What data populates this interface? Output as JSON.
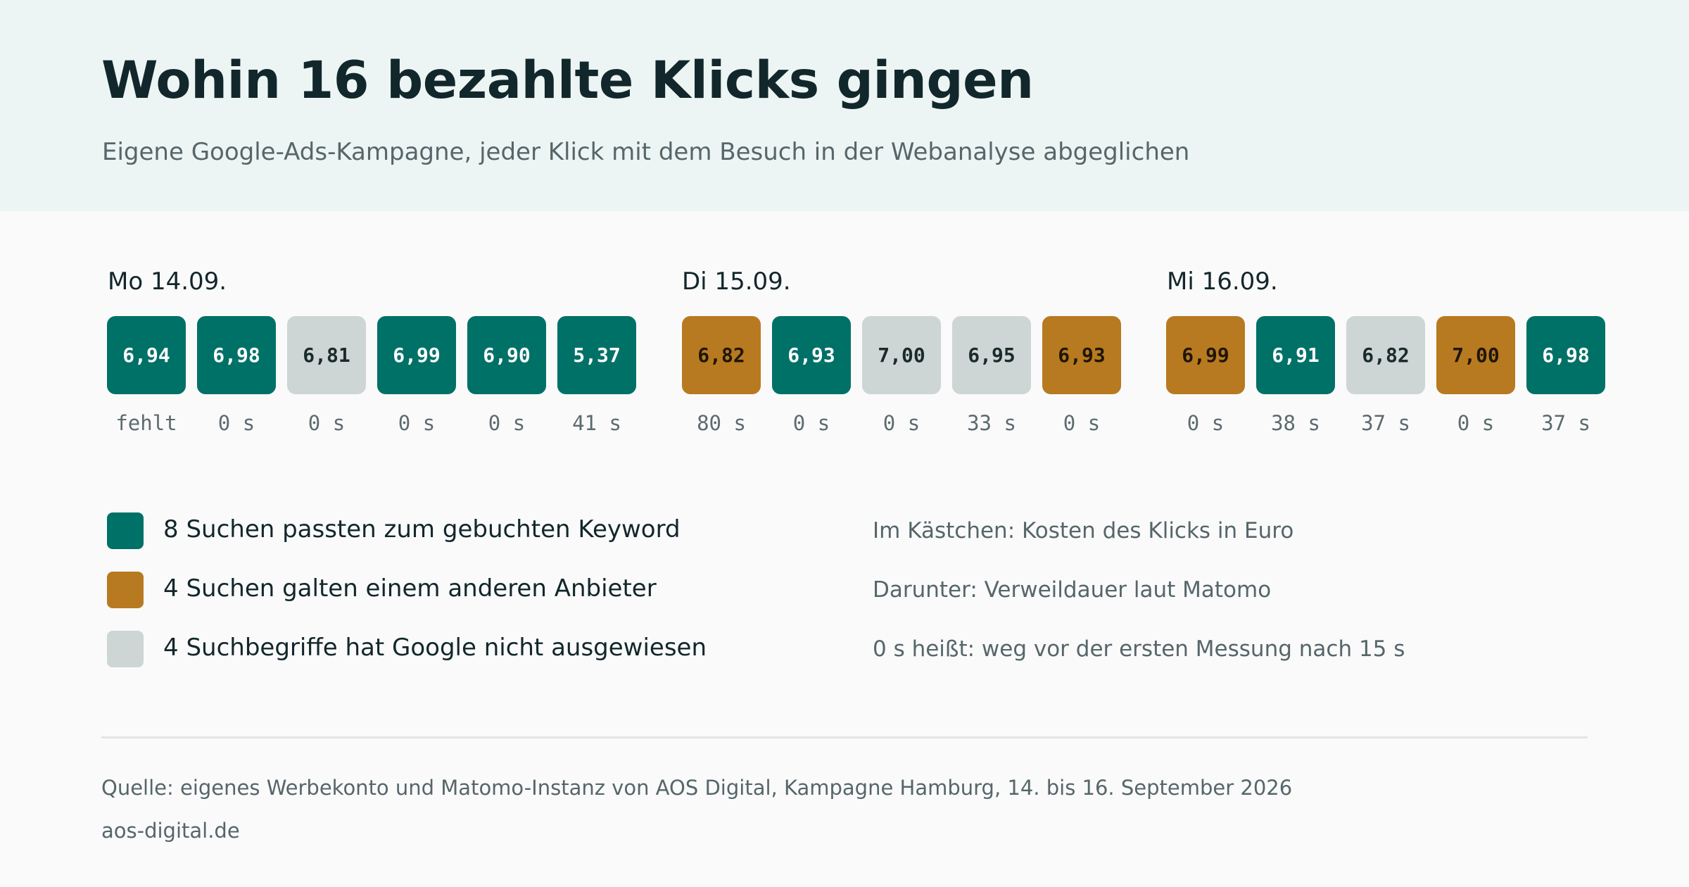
{
  "header": {
    "title": "Wohin 16 bezahlte Klicks gingen",
    "subtitle": "Eigene Google-Ads-Kampagne, jeder Klick mit dem Besuch in der Webanalyse abgeglichen"
  },
  "colors": {
    "keyword": "#007167",
    "other": "#b87a20",
    "unknown": "#cdd6d4",
    "header_bg": "#ecf5f3"
  },
  "chart_data": {
    "type": "table",
    "days": [
      {
        "label": "Mo 14.09.",
        "clicks": [
          {
            "cost": "6,94",
            "category": "keyword",
            "duration": "fehlt"
          },
          {
            "cost": "6,98",
            "category": "keyword",
            "duration": "0 s"
          },
          {
            "cost": "6,81",
            "category": "unknown",
            "duration": "0 s"
          },
          {
            "cost": "6,99",
            "category": "keyword",
            "duration": "0 s"
          },
          {
            "cost": "6,90",
            "category": "keyword",
            "duration": "0 s"
          },
          {
            "cost": "5,37",
            "category": "keyword",
            "duration": "41 s"
          }
        ]
      },
      {
        "label": "Di 15.09.",
        "clicks": [
          {
            "cost": "6,82",
            "category": "other",
            "duration": "80 s"
          },
          {
            "cost": "6,93",
            "category": "keyword",
            "duration": "0 s"
          },
          {
            "cost": "7,00",
            "category": "unknown",
            "duration": "0 s"
          },
          {
            "cost": "6,95",
            "category": "unknown",
            "duration": "33 s"
          },
          {
            "cost": "6,93",
            "category": "other",
            "duration": "0 s"
          }
        ]
      },
      {
        "label": "Mi 16.09.",
        "clicks": [
          {
            "cost": "6,99",
            "category": "other",
            "duration": "0 s"
          },
          {
            "cost": "6,91",
            "category": "keyword",
            "duration": "38 s"
          },
          {
            "cost": "6,82",
            "category": "unknown",
            "duration": "37 s"
          },
          {
            "cost": "7,00",
            "category": "other",
            "duration": "0 s"
          },
          {
            "cost": "6,98",
            "category": "keyword",
            "duration": "37 s"
          }
        ]
      }
    ],
    "legend": [
      {
        "category": "keyword",
        "label": "8 Suchen passten zum gebuchten Keyword"
      },
      {
        "category": "other",
        "label": "4 Suchen galten einem anderen Anbieter"
      },
      {
        "category": "unknown",
        "label": "4 Suchbegriffe hat Google nicht ausgewiesen"
      }
    ],
    "notes": [
      "Im Kästchen: Kosten des Klicks in Euro",
      "Darunter: Verweildauer laut Matomo",
      "0 s heißt: weg vor der ersten Messung nach 15 s"
    ]
  },
  "footer": {
    "source": "Quelle: eigenes Werbekonto und Matomo-Instanz von AOS Digital, Kampagne Hamburg, 14. bis 16. September 2026",
    "site": "aos-digital.de"
  }
}
